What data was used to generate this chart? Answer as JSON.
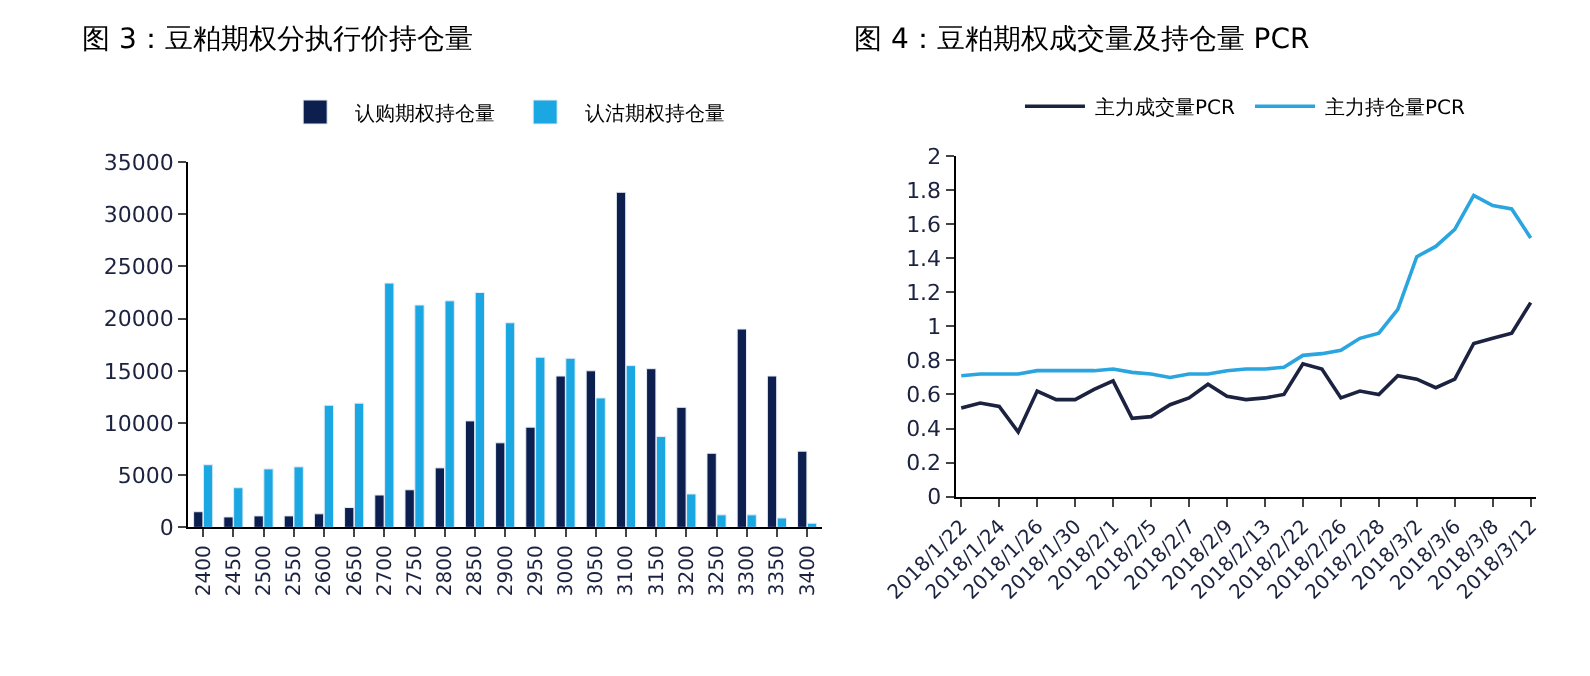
{
  "chart_data": [
    {
      "type": "bar",
      "title": "图 3：豆粕期权分执行价持仓量",
      "categories": [
        "2400",
        "2450",
        "2500",
        "2550",
        "2600",
        "2650",
        "2700",
        "2750",
        "2800",
        "2850",
        "2900",
        "2950",
        "3000",
        "3050",
        "3100",
        "3150",
        "3200",
        "3250",
        "3300",
        "3350",
        "3400"
      ],
      "series": [
        {
          "name": "认购期权持仓量",
          "color": "#0c1f4f",
          "values": [
            1500,
            1000,
            1100,
            1100,
            1300,
            1900,
            3100,
            3600,
            5700,
            10200,
            8100,
            9600,
            14500,
            15000,
            32100,
            15200,
            11500,
            7100,
            19000,
            14500,
            7300
          ]
        },
        {
          "name": "认沽期权持仓量",
          "color": "#1ba8e2",
          "values": [
            6000,
            3800,
            5600,
            5800,
            11700,
            11900,
            23400,
            21300,
            21700,
            22500,
            19600,
            16300,
            16200,
            12400,
            15500,
            8700,
            3200,
            1200,
            1200,
            900,
            400
          ]
        }
      ],
      "ylim": [
        0,
        35000
      ],
      "yticks": [
        0,
        5000,
        10000,
        15000,
        20000,
        25000,
        30000,
        35000
      ],
      "legend": "top"
    },
    {
      "type": "line",
      "title": "图 4：豆粕期权成交量及持仓量 PCR",
      "categories": [
        "2018/1/22",
        null,
        "2018/1/24",
        null,
        "2018/1/26",
        null,
        "2018/1/30",
        null,
        "2018/2/1",
        null,
        "2018/2/5",
        null,
        "2018/2/7",
        null,
        "2018/2/9",
        null,
        "2018/2/13",
        null,
        "2018/2/22",
        null,
        "2018/2/26",
        null,
        "2018/2/28",
        null,
        "2018/3/2",
        null,
        "2018/3/6",
        null,
        "2018/3/8",
        null,
        "2018/3/12"
      ],
      "series": [
        {
          "name": "主力成交量PCR",
          "color": "#1c2340",
          "values": [
            0.52,
            0.55,
            0.53,
            0.38,
            0.62,
            0.57,
            0.57,
            0.63,
            0.68,
            0.46,
            0.47,
            0.54,
            0.58,
            0.66,
            0.59,
            0.57,
            0.58,
            0.6,
            0.78,
            0.75,
            0.58,
            0.62,
            0.6,
            0.71,
            0.69,
            0.64,
            0.69,
            0.9,
            0.93,
            0.96,
            1.14
          ]
        },
        {
          "name": "主力持仓量PCR",
          "color": "#2aa5e0",
          "values": [
            0.71,
            0.72,
            0.72,
            0.72,
            0.74,
            0.74,
            0.74,
            0.74,
            0.75,
            0.73,
            0.72,
            0.7,
            0.72,
            0.72,
            0.74,
            0.75,
            0.75,
            0.76,
            0.83,
            0.84,
            0.86,
            0.93,
            0.96,
            1.1,
            1.41,
            1.47,
            1.57,
            1.77,
            1.71,
            1.69,
            1.52
          ]
        }
      ],
      "ylim": [
        0,
        2
      ],
      "yticks": [
        0,
        0.2,
        0.4,
        0.6,
        0.8,
        1,
        1.2,
        1.4,
        1.6,
        1.8,
        2
      ],
      "legend": "top",
      "marker": "none",
      "line_style": "solid"
    }
  ]
}
